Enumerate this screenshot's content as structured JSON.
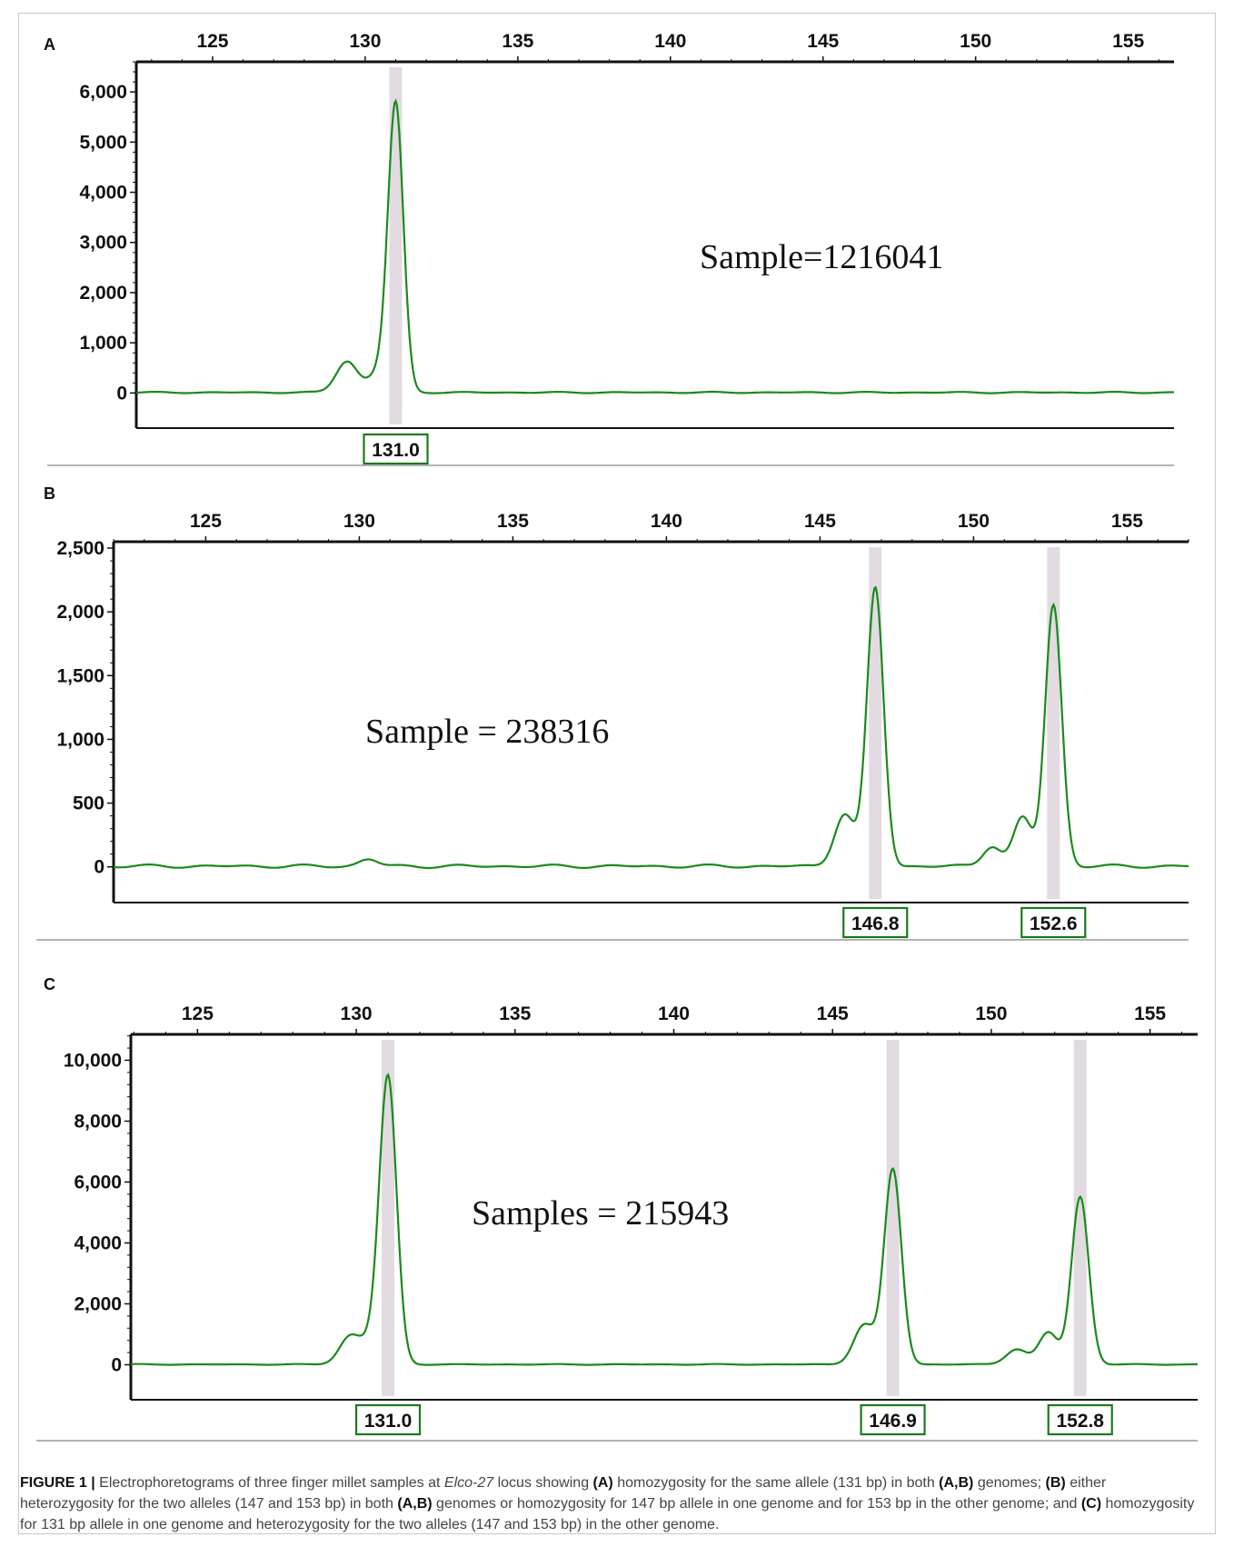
{
  "chart_data": [
    {
      "type": "line",
      "panel_label": "A",
      "annotation": "Sample=1216041",
      "x_ticks": [
        125,
        130,
        135,
        140,
        145,
        150,
        155
      ],
      "x_range": [
        122.5,
        156.5
      ],
      "y_ticks": [
        0,
        1000,
        2000,
        3000,
        4000,
        5000,
        6000
      ],
      "y_tick_labels": [
        "0",
        "1,000",
        "2,000",
        "3,000",
        "4,000",
        "5,000",
        "6,000"
      ],
      "y_range": [
        -700,
        6600
      ],
      "peaks": [
        {
          "x": 129.4,
          "height": 620,
          "width": 0.35
        },
        {
          "x": 130.5,
          "height": 420,
          "width": 0.35
        },
        {
          "x": 131.0,
          "height": 5650,
          "width": 0.25
        }
      ],
      "baseline": 10,
      "called_alleles": [
        {
          "x": 131.0,
          "label": "131.0"
        }
      ]
    },
    {
      "type": "line",
      "panel_label": "B",
      "annotation": "Sample = 238316",
      "x_ticks": [
        125,
        130,
        135,
        140,
        145,
        150,
        155
      ],
      "x_range": [
        122.0,
        157.0
      ],
      "y_ticks": [
        0,
        500,
        1000,
        1500,
        2000,
        2500
      ],
      "y_tick_labels": [
        "0",
        "500",
        "1,000",
        "1,500",
        "2,000",
        "2,500"
      ],
      "y_range": [
        -280,
        2550
      ],
      "peaks": [
        {
          "x": 130.3,
          "height": 55,
          "width": 0.3
        },
        {
          "x": 145.8,
          "height": 410,
          "width": 0.33
        },
        {
          "x": 146.8,
          "height": 2180,
          "width": 0.27
        },
        {
          "x": 150.6,
          "height": 160,
          "width": 0.3
        },
        {
          "x": 151.6,
          "height": 380,
          "width": 0.3
        },
        {
          "x": 152.6,
          "height": 2050,
          "width": 0.27
        }
      ],
      "baseline": 5,
      "called_alleles": [
        {
          "x": 146.8,
          "label": "146.8"
        },
        {
          "x": 152.6,
          "label": "152.6"
        }
      ]
    },
    {
      "type": "line",
      "panel_label": "C",
      "annotation": "Samples = 215943",
      "x_ticks": [
        125,
        130,
        135,
        140,
        145,
        150,
        155
      ],
      "x_range": [
        122.9,
        156.5
      ],
      "y_ticks": [
        0,
        2000,
        4000,
        6000,
        8000,
        10000
      ],
      "y_tick_labels": [
        "0",
        "2,000",
        "4,000",
        "6,000",
        "8,000",
        "10,000"
      ],
      "y_range": [
        -1150,
        10850
      ],
      "peaks": [
        {
          "x": 129.8,
          "height": 900,
          "width": 0.33
        },
        {
          "x": 130.5,
          "height": 650,
          "width": 0.33
        },
        {
          "x": 131.0,
          "height": 9300,
          "width": 0.27
        },
        {
          "x": 146.0,
          "height": 1300,
          "width": 0.33
        },
        {
          "x": 146.9,
          "height": 6400,
          "width": 0.27
        },
        {
          "x": 150.8,
          "height": 500,
          "width": 0.33
        },
        {
          "x": 151.8,
          "height": 1050,
          "width": 0.3
        },
        {
          "x": 152.8,
          "height": 5500,
          "width": 0.27
        }
      ],
      "baseline": 10,
      "called_alleles": [
        {
          "x": 131.0,
          "label": "131.0"
        },
        {
          "x": 146.9,
          "label": "146.9"
        },
        {
          "x": 152.8,
          "label": "152.8"
        }
      ]
    }
  ],
  "caption": {
    "figure_label": "FIGURE 1 |",
    "t1": " Electrophoretograms of three finger millet samples at ",
    "locus": "Elco-27",
    "t2": " locus showing ",
    "b1": "(A)",
    "t3": " homozygosity for the same allele (131 bp) in both ",
    "b2": "(A,B)",
    "t4": " genomes; ",
    "b3": "(B)",
    "t5": " either heterozygosity for the two alleles (147 and 153 bp) in both ",
    "b4": "(A,B)",
    "t6": " genomes or homozygosity for 147 bp allele in one genome and for 153 bp in the other genome; and ",
    "b5": "(C)",
    "t7": " homozygosity for 131 bp allele in one genome and heterozygosity for the two alleles (147 and 153 bp) in the other genome."
  },
  "colors": {
    "trace": "#1a8a1a",
    "allele_box": "#1a7a1a",
    "bin_shade": "#e2dbe2",
    "axis": "#111111",
    "separator": "#9a9a9a"
  }
}
